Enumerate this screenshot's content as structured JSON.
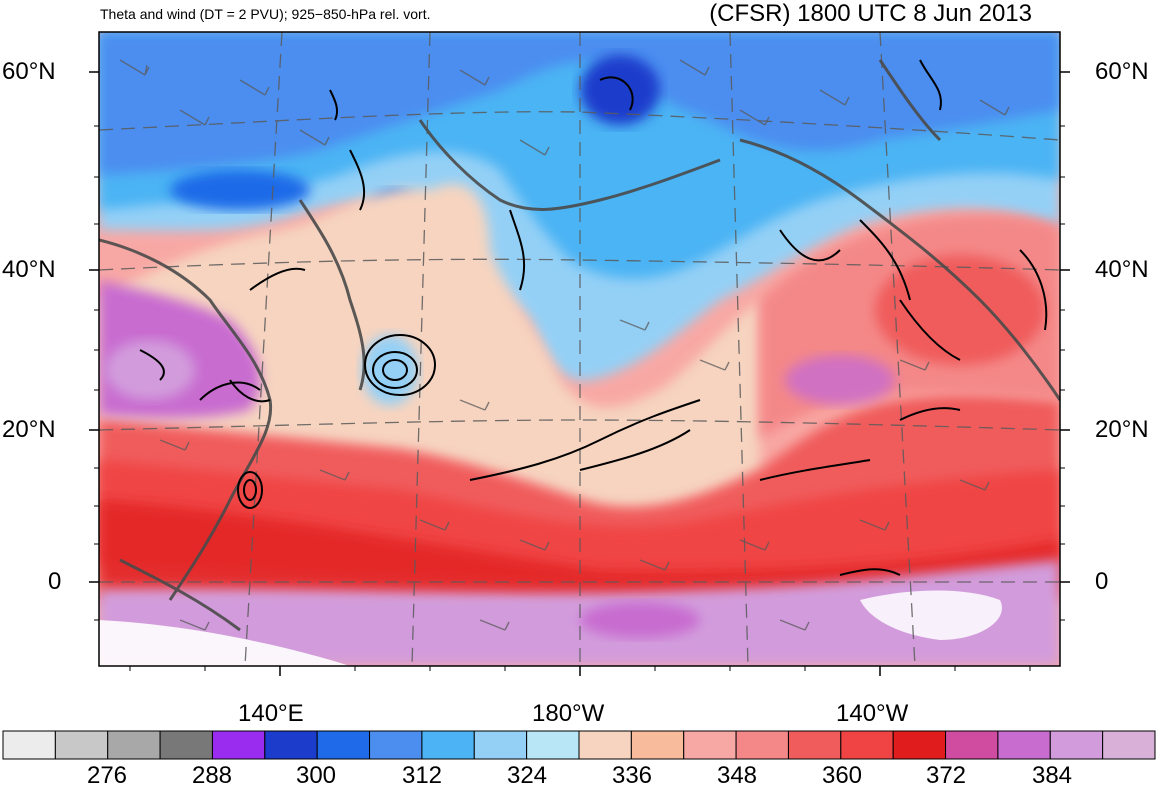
{
  "header": {
    "left_title": "Theta and wind (DT = 2 PVU); 925−850-hPa rel. vort.",
    "right_title": "(CFSR) 1800 UTC 8 Jun 2013"
  },
  "axes": {
    "lat_labels": [
      "60°N",
      "40°N",
      "20°N",
      "0"
    ],
    "lon_labels": [
      "140°E",
      "180°W",
      "140°W"
    ]
  },
  "colorbar": {
    "labels": [
      "276",
      "288",
      "300",
      "312",
      "324",
      "336",
      "348",
      "360",
      "372",
      "384"
    ],
    "colors": [
      "#ececec",
      "#c8c8c8",
      "#a8a8a8",
      "#787878",
      "#9a2cf0",
      "#1c3ccc",
      "#1e6ae8",
      "#4c8ef0",
      "#4cb4f4",
      "#94d0f6",
      "#b8e6f6",
      "#f6d4c0",
      "#f8bc9c",
      "#f8a8a4",
      "#f48888",
      "#f05c5c",
      "#f04444",
      "#e01c1c",
      "#d04ca0",
      "#c86cd0",
      "#d29cdc",
      "#d8b0d8"
    ]
  },
  "map": {
    "projection": "polar stereographic / rotated",
    "field_colors": {
      "cold": "#4c8ef0",
      "cool": "#94d0f6",
      "neutral": "#f6d4c0",
      "warm": "#f48888",
      "hot": "#f04444",
      "hotter": "#e01c1c",
      "very_hot": "#c86cd0"
    }
  }
}
